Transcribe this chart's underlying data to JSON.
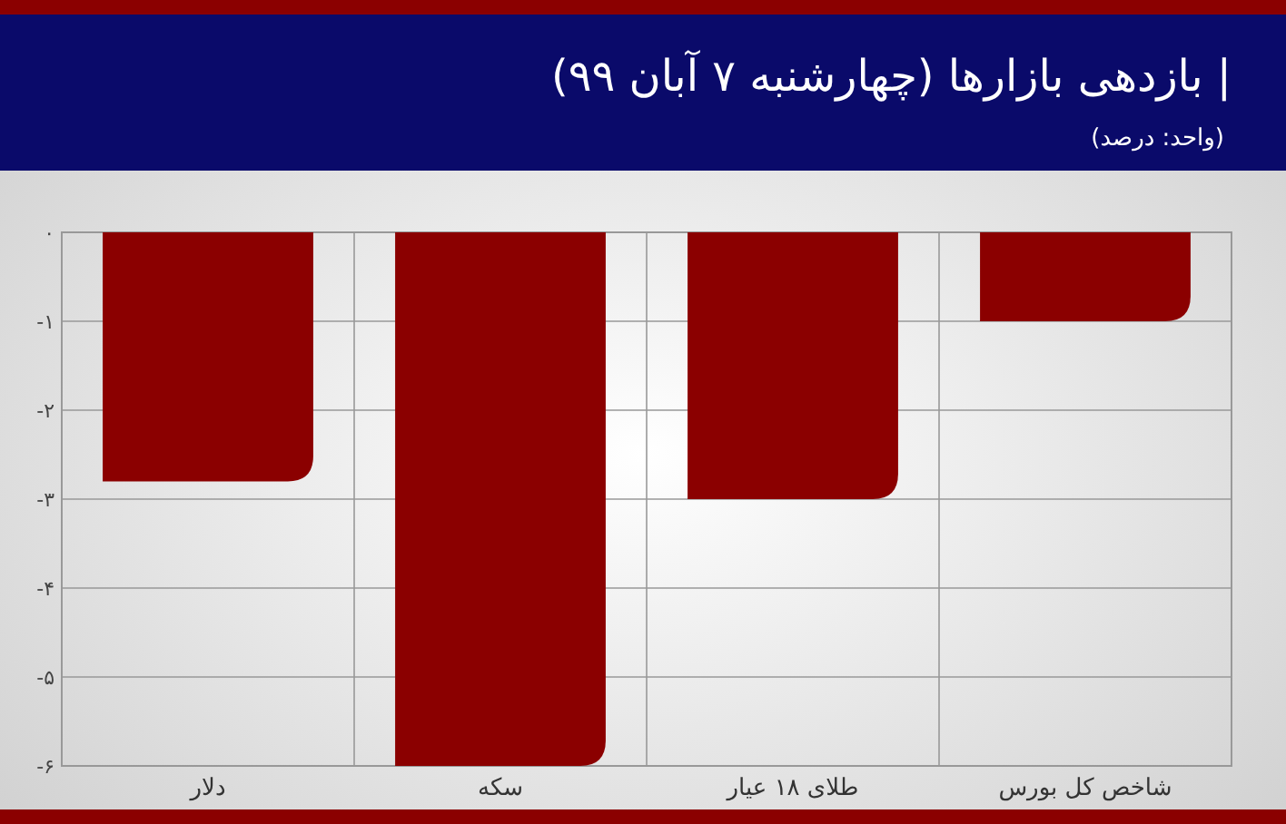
{
  "chart_data": {
    "type": "bar",
    "title": "| بازدهی بازارها (چهارشنبه ۷ آبان ۹۹)",
    "subtitle": "(واحد: درصد)",
    "categories": [
      "دلار",
      "سکه",
      "طلای ۱۸ عیار",
      "شاخص کل بورس"
    ],
    "values": [
      -2.8,
      -6,
      -3,
      -1
    ],
    "color": "#8b0000",
    "ylim": [
      -6,
      0
    ],
    "yticks": [
      {
        "value": 0,
        "label": "۰"
      },
      {
        "value": -1,
        "label": "-۱"
      },
      {
        "value": -2,
        "label": "-۲"
      },
      {
        "value": -3,
        "label": "-۳"
      },
      {
        "value": -4,
        "label": "-۴"
      },
      {
        "value": -5,
        "label": "-۵"
      },
      {
        "value": -6,
        "label": "-۶"
      }
    ],
    "grid": true
  }
}
